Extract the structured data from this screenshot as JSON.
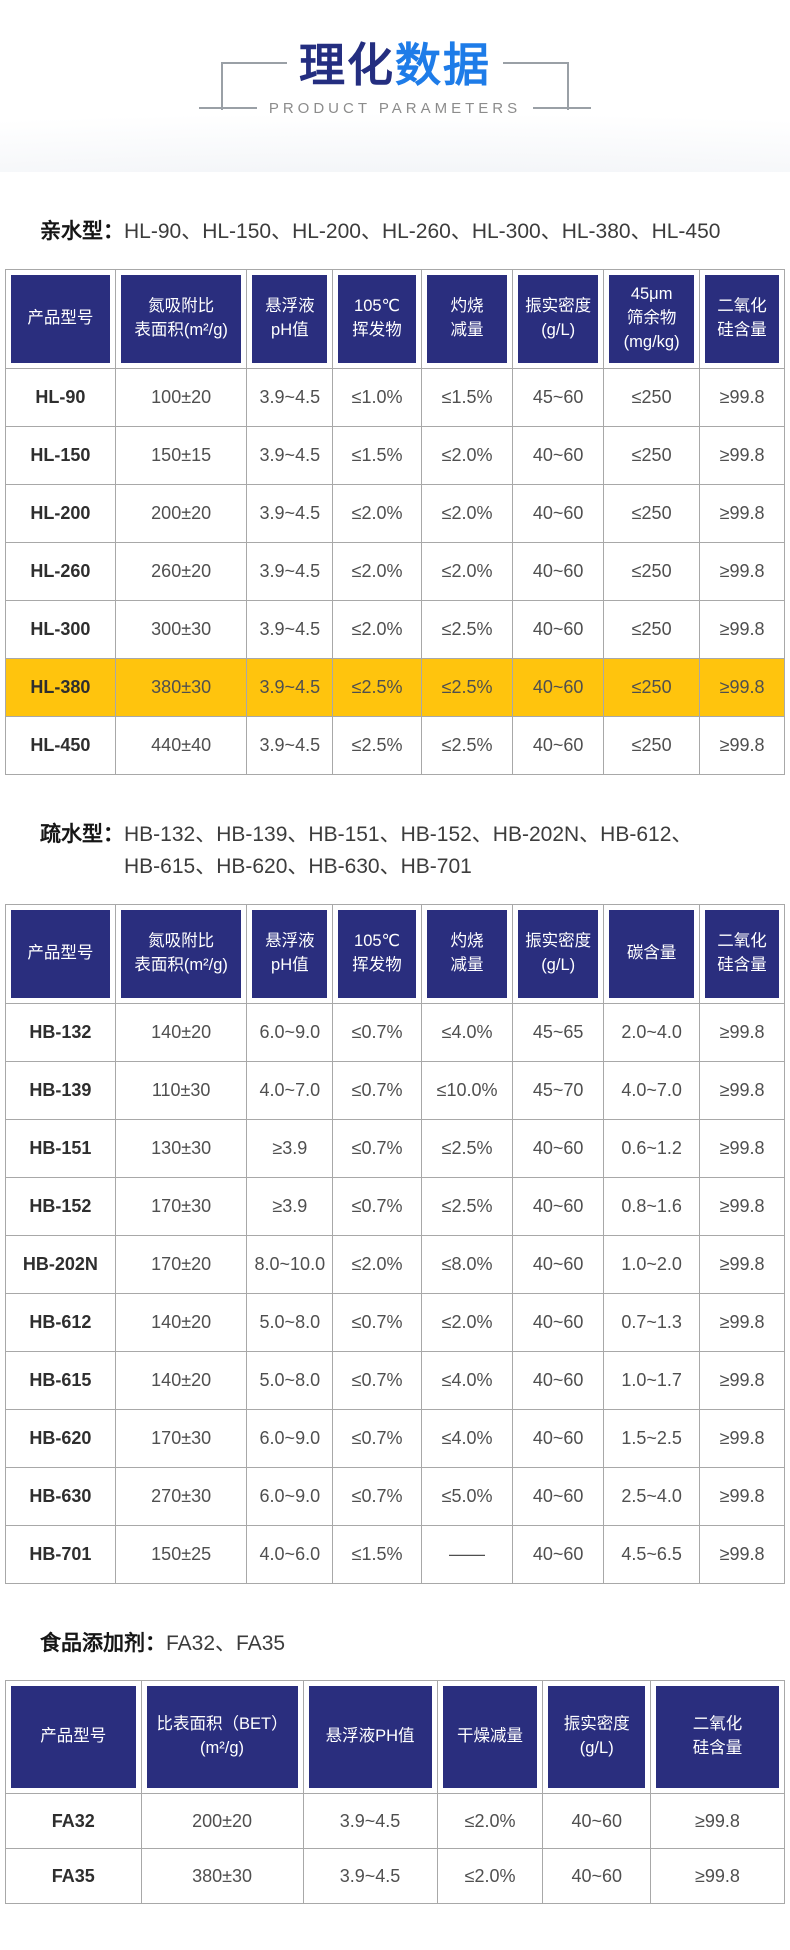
{
  "header": {
    "title_primary": "理化",
    "title_accent": "数据",
    "subtitle": "PRODUCT PARAMETERS"
  },
  "colors": {
    "title_primary": "#242e80",
    "title_accent": "#1e7ce8",
    "table_header_bg": "#2a2e7e",
    "highlight_row_bg": "#ffc40d",
    "border": "#a8a8a8"
  },
  "sections": [
    {
      "id": "hydrophilic",
      "label": "亲水型：",
      "models": "HL-90、HL-150、HL-200、HL-260、HL-300、HL-380、HL-450",
      "table": {
        "columns": [
          "产品型号",
          "氮吸附比\n表面积(m²/g)",
          "悬浮液\npH值",
          "105℃\n挥发物",
          "灼烧\n减量",
          "振实密度\n(g/L)",
          "45μm\n筛余物\n(mg/kg)",
          "二氧化\n硅含量"
        ],
        "col_widths": [
          "14.1%",
          "16.9%",
          "11%",
          "11.4%",
          "11.7%",
          "11.7%",
          "12.3%",
          "10.9%"
        ],
        "highlight_row_index": 5,
        "rows": [
          [
            "HL-90",
            "100±20",
            "3.9~4.5",
            "≤1.0%",
            "≤1.5%",
            "45~60",
            "≤250",
            "≥99.8"
          ],
          [
            "HL-150",
            "150±15",
            "3.9~4.5",
            "≤1.5%",
            "≤2.0%",
            "40~60",
            "≤250",
            "≥99.8"
          ],
          [
            "HL-200",
            "200±20",
            "3.9~4.5",
            "≤2.0%",
            "≤2.0%",
            "40~60",
            "≤250",
            "≥99.8"
          ],
          [
            "HL-260",
            "260±20",
            "3.9~4.5",
            "≤2.0%",
            "≤2.0%",
            "40~60",
            "≤250",
            "≥99.8"
          ],
          [
            "HL-300",
            "300±30",
            "3.9~4.5",
            "≤2.0%",
            "≤2.5%",
            "40~60",
            "≤250",
            "≥99.8"
          ],
          [
            "HL-380",
            "380±30",
            "3.9~4.5",
            "≤2.5%",
            "≤2.5%",
            "40~60",
            "≤250",
            "≥99.8"
          ],
          [
            "HL-450",
            "440±40",
            "3.9~4.5",
            "≤2.5%",
            "≤2.5%",
            "40~60",
            "≤250",
            "≥99.8"
          ]
        ]
      }
    },
    {
      "id": "hydrophobic",
      "label": "疏水型：",
      "models": "HB-132、HB-139、HB-151、HB-152、HB-202N、HB-612、\nHB-615、HB-620、HB-630、HB-701",
      "table": {
        "columns": [
          "产品型号",
          "氮吸附比\n表面积(m²/g)",
          "悬浮液\npH值",
          "105℃\n挥发物",
          "灼烧\n减量",
          "振实密度\n(g/L)",
          "碳含量",
          "二氧化\n硅含量"
        ],
        "col_widths": [
          "14.1%",
          "16.9%",
          "11%",
          "11.4%",
          "11.7%",
          "11.7%",
          "12.3%",
          "10.9%"
        ],
        "highlight_row_index": -1,
        "rows": [
          [
            "HB-132",
            "140±20",
            "6.0~9.0",
            "≤0.7%",
            "≤4.0%",
            "45~65",
            "2.0~4.0",
            "≥99.8"
          ],
          [
            "HB-139",
            "110±30",
            "4.0~7.0",
            "≤0.7%",
            "≤10.0%",
            "45~70",
            "4.0~7.0",
            "≥99.8"
          ],
          [
            "HB-151",
            "130±30",
            "≥3.9",
            "≤0.7%",
            "≤2.5%",
            "40~60",
            "0.6~1.2",
            "≥99.8"
          ],
          [
            "HB-152",
            "170±30",
            "≥3.9",
            "≤0.7%",
            "≤2.5%",
            "40~60",
            "0.8~1.6",
            "≥99.8"
          ],
          [
            "HB-202N",
            "170±20",
            "8.0~10.0",
            "≤2.0%",
            "≤8.0%",
            "40~60",
            "1.0~2.0",
            "≥99.8"
          ],
          [
            "HB-612",
            "140±20",
            "5.0~8.0",
            "≤0.7%",
            "≤2.0%",
            "40~60",
            "0.7~1.3",
            "≥99.8"
          ],
          [
            "HB-615",
            "140±20",
            "5.0~8.0",
            "≤0.7%",
            "≤4.0%",
            "40~60",
            "1.0~1.7",
            "≥99.8"
          ],
          [
            "HB-620",
            "170±30",
            "6.0~9.0",
            "≤0.7%",
            "≤4.0%",
            "40~60",
            "1.5~2.5",
            "≥99.8"
          ],
          [
            "HB-630",
            "270±30",
            "6.0~9.0",
            "≤0.7%",
            "≤5.0%",
            "40~60",
            "2.5~4.0",
            "≥99.8"
          ],
          [
            "HB-701",
            "150±25",
            "4.0~6.0",
            "≤1.5%",
            "——",
            "40~60",
            "4.5~6.5",
            "≥99.8"
          ]
        ]
      }
    },
    {
      "id": "food-additive",
      "label": "食品添加剂：",
      "models": "FA32、FA35",
      "table": {
        "columns": [
          "产品型号",
          "比表面积（BET）\n(m²/g)",
          "悬浮液PH值",
          "干燥减量",
          "振实密度\n(g/L)",
          "二氧化\n硅含量"
        ],
        "col_widths": [
          "17.4%",
          "20.8%",
          "17.2%",
          "13.6%",
          "13.8%",
          "17.2%"
        ],
        "highlight_row_index": -1,
        "rows": [
          [
            "FA32",
            "200±20",
            "3.9~4.5",
            "≤2.0%",
            "40~60",
            "≥99.8"
          ],
          [
            "FA35",
            "380±30",
            "3.9~4.5",
            "≤2.0%",
            "40~60",
            "≥99.8"
          ]
        ]
      }
    }
  ]
}
